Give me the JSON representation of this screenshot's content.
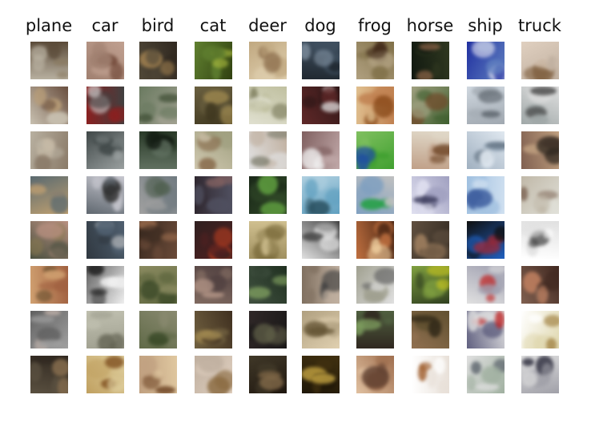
{
  "classes": [
    "plane",
    "car",
    "bird",
    "cat",
    "deer",
    "dog",
    "frog",
    "horse",
    "ship",
    "truck"
  ],
  "samples_per_class": 8,
  "tiles": [
    [
      [
        "#b8b0a0",
        "#8a7a60",
        "#5a4a38"
      ],
      [
        "#c8c0b0",
        "#bca078",
        "#6a5040"
      ],
      [
        "#b8b0a0",
        "#c8bca8",
        "#8a7a68"
      ],
      [
        "#5a6a70",
        "#8a8070",
        "#c0a070"
      ],
      [
        "#b89080",
        "#8a7a50",
        "#4a5040"
      ],
      [
        "#a06040",
        "#6a5030",
        "#d0a070"
      ],
      [
        "#a0a0a0",
        "#c8b8b0",
        "#606060"
      ],
      [
        "#5a5040",
        "#8a7050",
        "#302820"
      ]
    ],
    [
      [
        "#a08070",
        "#6a4030",
        "#c0a090"
      ],
      [
        "#8a2020",
        "#d0d0d0",
        "#404040"
      ],
      [
        "#404848",
        "#707878",
        "#9aa0a0"
      ],
      [
        "#c8c8d0",
        "#303030",
        "#606870"
      ],
      [
        "#506070",
        "#d0d0d0",
        "#303840"
      ],
      [
        "#f0f0f0",
        "#202020",
        "#606060"
      ],
      [
        "#a0a090",
        "#606050",
        "#c0c0b0"
      ],
      [
        "#c0a060",
        "#805020",
        "#e0d0a0"
      ]
    ],
    [
      [
        "#504838",
        "#a08050",
        "#302820"
      ],
      [
        "#6a7a60",
        "#3a4a30",
        "#a0a090"
      ],
      [
        "#2a3a28",
        "#101810",
        "#607060"
      ],
      [
        "#707a80",
        "#506050",
        "#a0a0a0"
      ],
      [
        "#6a4a38",
        "#a07050",
        "#3a2a20"
      ],
      [
        "#606840",
        "#304020",
        "#8a8a60"
      ],
      [
        "#606a48",
        "#3a4a28",
        "#8a8a70"
      ],
      [
        "#c0a080",
        "#6a4020",
        "#e0c8a0"
      ]
    ],
    [
      [
        "#608030",
        "#b0c040",
        "#304010"
      ],
      [
        "#6a6040",
        "#a08a50",
        "#403820"
      ],
      [
        "#a0a080",
        "#806040",
        "#d0c8b0"
      ],
      [
        "#505060",
        "#806060",
        "#302830"
      ],
      [
        "#502020",
        "#c04020",
        "#302020"
      ],
      [
        "#806a60",
        "#c0a090",
        "#504040"
      ],
      [
        "#706040",
        "#a08850",
        "#403020"
      ],
      [
        "#c0b0a0",
        "#8a6a40",
        "#e0d0c0"
      ]
    ],
    [
      [
        "#c0a880",
        "#806040",
        "#e0d0b0"
      ],
      [
        "#c0c0a0",
        "#808060",
        "#e0e0d0"
      ],
      [
        "#c0b0a0",
        "#808070",
        "#e0e0e0"
      ],
      [
        "#304828",
        "#60a040",
        "#1a2818"
      ],
      [
        "#a09060",
        "#706030",
        "#d0c090"
      ],
      [
        "#405040",
        "#80a060",
        "#203020"
      ],
      [
        "#302828",
        "#606048",
        "#1a1818"
      ],
      [
        "#403828",
        "#806848",
        "#201810"
      ]
    ],
    [
      [
        "#405060",
        "#8090a0",
        "#202830"
      ],
      [
        "#301818",
        "#f0f0f0",
        "#602828"
      ],
      [
        "#c0a8a8",
        "#f0f0f0",
        "#806060"
      ],
      [
        "#60a0c0",
        "#2a5060",
        "#b0d0e0"
      ],
      [
        "#e0e0e0",
        "#808080",
        "#404040"
      ],
      [
        "#807060",
        "#404040",
        "#c0b0a0"
      ],
      [
        "#b0a080",
        "#605030",
        "#e0d0b0"
      ],
      [
        "#403010",
        "#c0a040",
        "#201808"
      ]
    ],
    [
      [
        "#807048",
        "#402818",
        "#b0a080"
      ],
      [
        "#c08050",
        "#804010",
        "#e0c090"
      ],
      [
        "#40a030",
        "#2050a0",
        "#80c060"
      ],
      [
        "#80a0c0",
        "#20a040",
        "#c0c0c0"
      ],
      [
        "#c07040",
        "#f0d0a0",
        "#402010"
      ],
      [
        "#a0a090",
        "#606060",
        "#e0e0e0"
      ],
      [
        "#506040",
        "#80a060",
        "#302820"
      ],
      [
        "#a07050",
        "#604030",
        "#e0c0a0"
      ]
    ],
    [
      [
        "#303820",
        "#a07050",
        "#101810"
      ],
      [
        "#406030",
        "#704828",
        "#a0a080"
      ],
      [
        "#c0a088",
        "#6a4020",
        "#e0d8c8"
      ],
      [
        "#e0e0f0",
        "#404060",
        "#a0a0c0"
      ],
      [
        "#605040",
        "#a08060",
        "#302820"
      ],
      [
        "#80a040",
        "#c0c020",
        "#304020"
      ],
      [
        "#605030",
        "#302818",
        "#907050"
      ],
      [
        "#e8e0d8",
        "#a06030",
        "#ffffff"
      ]
    ],
    [
      [
        "#6080c0",
        "#e0e0f0",
        "#2030a0"
      ],
      [
        "#a0a8b0",
        "#606870",
        "#d0d8e0"
      ],
      [
        "#a0b0c0",
        "#607080",
        "#e0e8f0"
      ],
      [
        "#a0c0e0",
        "#4060a0",
        "#d0e0f0"
      ],
      [
        "#101010",
        "#c02020",
        "#2060c0"
      ],
      [
        "#a0a0b0",
        "#c03030",
        "#e0e0e0"
      ],
      [
        "#e0e0e0",
        "#c02020",
        "#606080"
      ],
      [
        "#a0b0a0",
        "#606870",
        "#e0e0e0"
      ]
    ],
    [
      [
        "#c0b0a0",
        "#806040",
        "#e0d0c0"
      ],
      [
        "#a0a8a8",
        "#303030",
        "#e0e0e0"
      ],
      [
        "#806050",
        "#302820",
        "#c0a080"
      ],
      [
        "#c0b8a8",
        "#806858",
        "#e0e0d8"
      ],
      [
        "#e0e0e0",
        "#404040",
        "#ffffff"
      ],
      [
        "#402820",
        "#c08060",
        "#806050"
      ],
      [
        "#e0d8b0",
        "#a08040",
        "#ffffff"
      ],
      [
        "#a0a0a8",
        "#303040",
        "#e0e0e0"
      ]
    ]
  ]
}
